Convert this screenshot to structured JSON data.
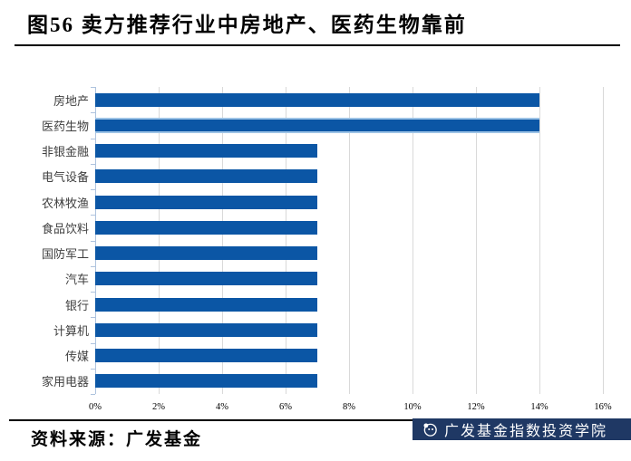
{
  "header": {
    "title": "图56  卖方推荐行业中房地产、医药生物靠前"
  },
  "chart_data": {
    "type": "bar",
    "orientation": "horizontal",
    "title": "图56  卖方推荐行业中房地产、医药生物靠前",
    "categories": [
      "房地产",
      "医药生物",
      "非银金融",
      "电气设备",
      "农林牧渔",
      "食品饮料",
      "国防军工",
      "汽车",
      "银行",
      "计算机",
      "传媒",
      "家用电器"
    ],
    "values": [
      14,
      14,
      7,
      7,
      7,
      7,
      7,
      7,
      7,
      7,
      7,
      7
    ],
    "unit": "%",
    "xlim": [
      0,
      16
    ],
    "xtick_values": [
      0,
      2,
      4,
      6,
      8,
      10,
      12,
      14,
      16
    ],
    "xtick_labels": [
      "0%",
      "2%",
      "4%",
      "6%",
      "8%",
      "10%",
      "12%",
      "14%",
      "16%"
    ],
    "grid": true,
    "legend": false,
    "bar_color": "#0B56A5",
    "highlight_index": 1,
    "highlight_edge_color": "#9DC3E6",
    "gridline_color": "#D9D9D9",
    "axis_color": "#AEC3DE",
    "label_color": "#404040"
  },
  "footer": {
    "source_label": "资料来源：广发基金",
    "badge": {
      "text": "广发基金指数投资学院",
      "bg_color": "#1F3864",
      "text_color": "#FFFFFF",
      "logo": "gf-circle-logo"
    }
  }
}
